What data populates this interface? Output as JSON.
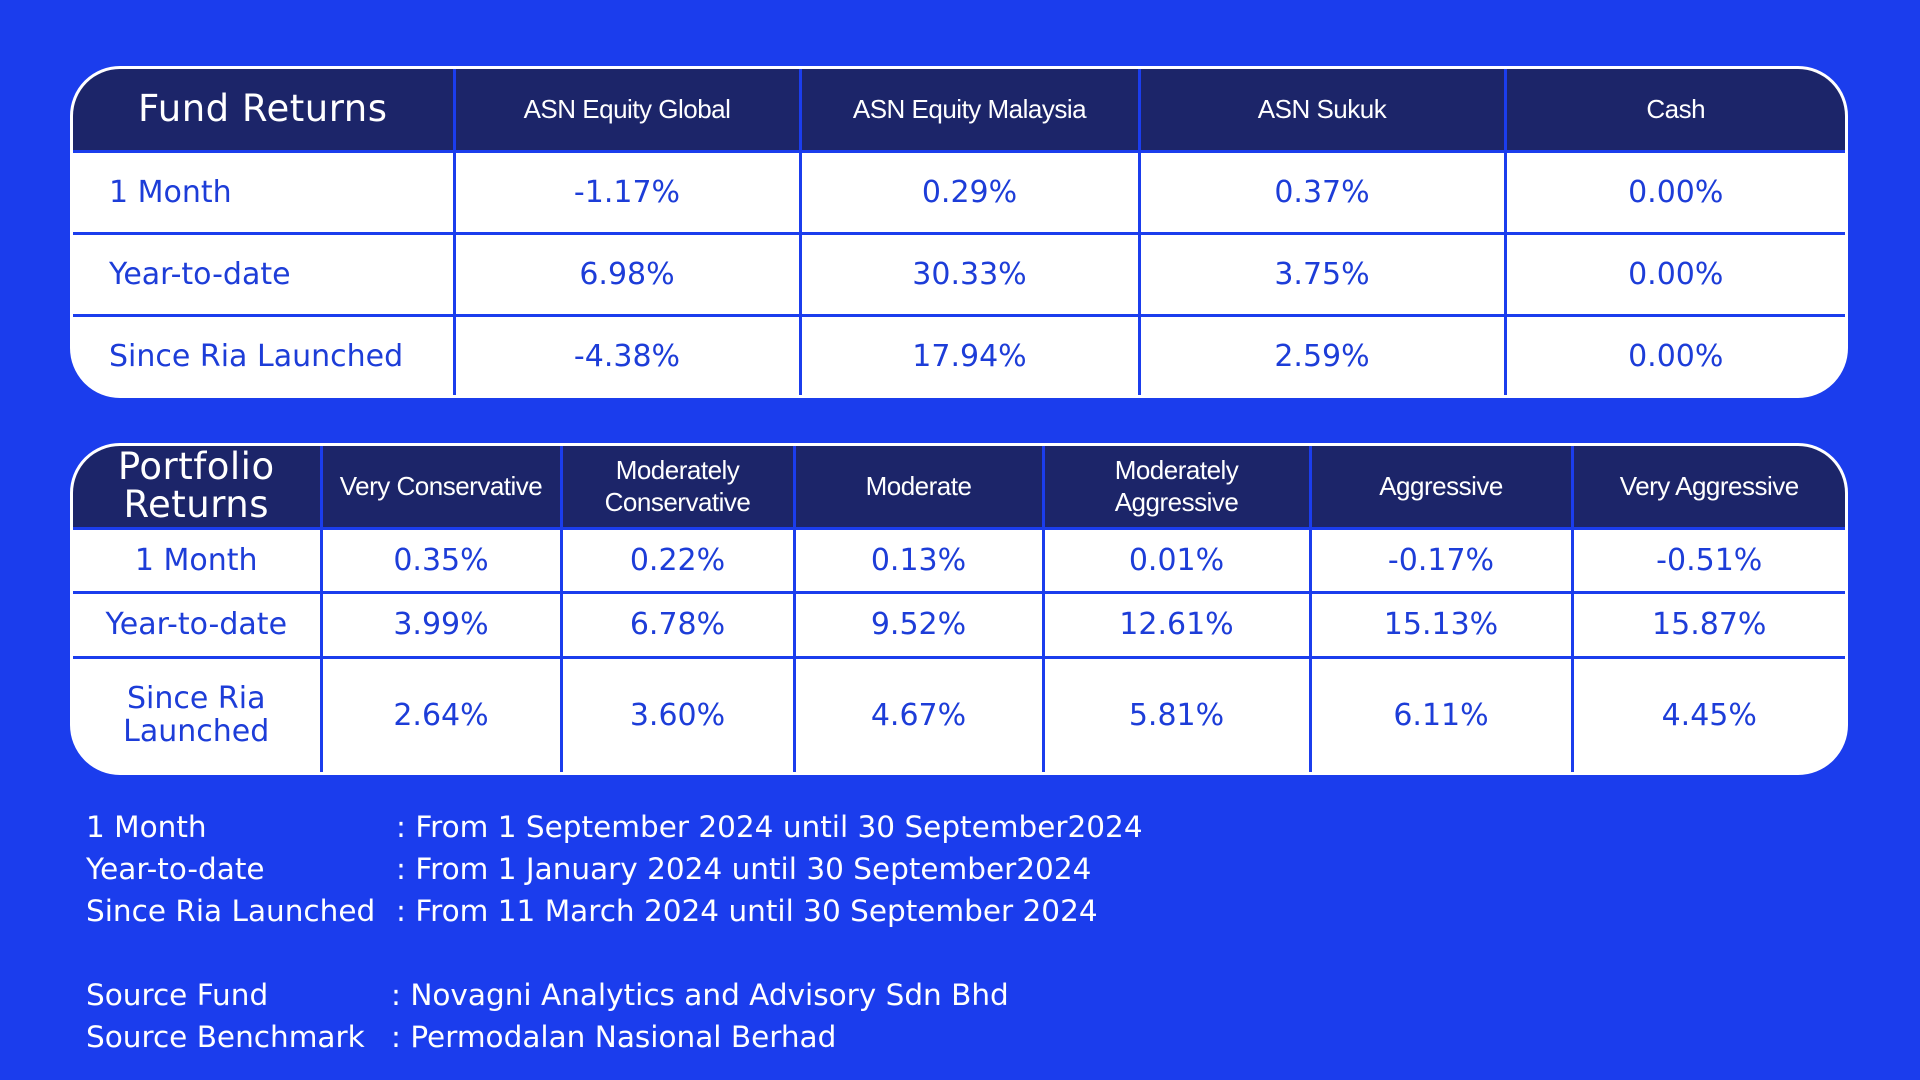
{
  "fund_returns": {
    "title": "Fund Returns",
    "columns": [
      "ASN Equity Global",
      "ASN Equity Malaysia",
      "ASN Sukuk",
      "Cash"
    ],
    "rows": [
      {
        "label": "1 Month",
        "values": [
          "-1.17%",
          "0.29%",
          "0.37%",
          "0.00%"
        ]
      },
      {
        "label": "Year-to-date",
        "values": [
          "6.98%",
          "30.33%",
          "3.75%",
          "0.00%"
        ]
      },
      {
        "label": "Since Ria Launched",
        "values": [
          "-4.38%",
          "17.94%",
          "2.59%",
          "0.00%"
        ]
      }
    ]
  },
  "portfolio_returns": {
    "title": "Portfolio Returns",
    "columns": [
      "Very Conservative",
      "Moderately Conservative",
      "Moderate",
      "Moderately Aggressive",
      "Aggressive",
      "Very Aggressive"
    ],
    "rows": [
      {
        "label": "1 Month",
        "values": [
          "0.35%",
          "0.22%",
          "0.13%",
          "0.01%",
          "-0.17%",
          "-0.51%"
        ]
      },
      {
        "label": "Year-to-date",
        "values": [
          "3.99%",
          "6.78%",
          "9.52%",
          "12.61%",
          "15.13%",
          "15.87%"
        ]
      },
      {
        "label": "Since Ria Launched",
        "values": [
          "2.64%",
          "3.60%",
          "4.67%",
          "5.81%",
          "6.11%",
          "4.45%"
        ]
      }
    ]
  },
  "periods": [
    {
      "key": "1 Month",
      "value": ": From 1 September 2024 until 30 September2024"
    },
    {
      "key": "Year-to-date",
      "value": ": From 1 January 2024 until 30 September2024"
    },
    {
      "key": "Since Ria Launched",
      "value": ": From 11 March 2024 until 30 September 2024"
    }
  ],
  "sources": [
    {
      "key": "Source Fund",
      "value": ": Novagni Analytics and Advisory Sdn Bhd"
    },
    {
      "key": "Source Benchmark",
      "value": ": Permodalan Nasional Berhad"
    }
  ]
}
